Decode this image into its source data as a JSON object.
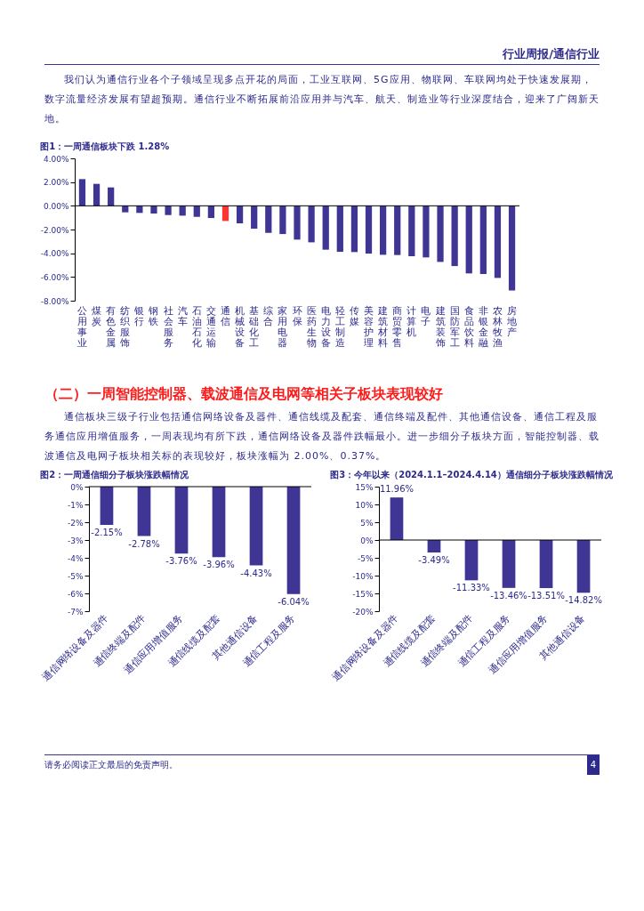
{
  "chart_data": [
    {
      "type": "other",
      "annotations": [
        "行业周报/通信行业",
        "我们认为通信行业各个子领域呈现多点开花的局面，工业互联网、5G应用、物联网、车联网均处于快速发展期，数字流量经济发展有望超预期。通信行业不断拓展前沿应用并与汽车、航天、制造业等行业深度结合，迎来了广阔新天地。"
      ]
    },
    {
      "type": "bar",
      "title": "图1：一周通信板块下跌 1.28%",
      "categories": [
        "公用事业",
        "煤炭",
        "有色金属",
        "纺织服饰",
        "银行",
        "钢铁",
        "社会服务",
        "汽车",
        "石油石化",
        "交通运输",
        "通信",
        "机械设备",
        "基础化工",
        "综合",
        "家用电器",
        "环保",
        "医药生物",
        "电力设备",
        "轻工制造",
        "传媒",
        "美容护理",
        "建筑材料",
        "商贸零售",
        "计算机",
        "电子",
        "建筑装饰",
        "国防军工",
        "食品饮料",
        "非银金融",
        "农林牧渔",
        "房地产"
      ],
      "values": [
        2.25,
        1.85,
        1.55,
        -0.55,
        -0.6,
        -0.65,
        -0.78,
        -0.83,
        -0.93,
        -1.03,
        -1.28,
        -1.48,
        -1.93,
        -2.28,
        -2.38,
        -2.85,
        -3.08,
        -3.7,
        -3.88,
        -3.9,
        -4.03,
        -4.13,
        -4.15,
        -4.25,
        -4.35,
        -4.73,
        -5.08,
        -5.7,
        -5.75,
        -6.08,
        -7.13
      ],
      "colors": [
        "#3f3594",
        "#3f3594",
        "#3f3594",
        "#3f3594",
        "#3f3594",
        "#3f3594",
        "#3f3594",
        "#3f3594",
        "#3f3594",
        "#3f3594",
        "#ff3333",
        "#3f3594",
        "#3f3594",
        "#3f3594",
        "#3f3594",
        "#3f3594",
        "#3f3594",
        "#3f3594",
        "#3f3594",
        "#3f3594",
        "#3f3594",
        "#3f3594",
        "#3f3594",
        "#3f3594",
        "#3f3594",
        "#3f3594",
        "#3f3594",
        "#3f3594",
        "#3f3594",
        "#3f3594",
        "#3f3594"
      ],
      "ylim": [
        -8,
        4
      ],
      "yticks": [
        {
          "value": 4,
          "label": "4.00%"
        },
        {
          "value": 2,
          "label": "2.00%"
        },
        {
          "value": 0,
          "label": "0.00%"
        },
        {
          "value": -2,
          "label": "-2.00%"
        },
        {
          "value": -4,
          "label": "-4.00%"
        },
        {
          "value": -6,
          "label": "-6.00%"
        },
        {
          "value": -8,
          "label": "-8.00%"
        }
      ]
    },
    {
      "type": "other",
      "title": "（二）一周智能控制器、载波通信及电网等相关子板块表现较好",
      "annotations": [
        "通信板块三级子行业包括通信网络设备及器件、通信线缆及配套、通信终端及配件、其他通信设备、通信工程及服务通信应用增值服务，一周表现均有所下跌，通信网络设备及器件跌幅最小。进一步细分子板块方面，智能控制器、载波通信及电网子板块相关标的表现较好，板块涨幅为 2.00%、0.37%。"
      ]
    },
    {
      "type": "bar",
      "title": "图2：一周通信细分子板块涨跌幅情况",
      "categories": [
        "通信网络设备及器件",
        "通信终端及配件",
        "通信应用增值服务",
        "通信线缆及配套",
        "其他通信设备",
        "通信工程及服务"
      ],
      "values": [
        -2.15,
        -2.78,
        -3.76,
        -3.96,
        -4.43,
        -6.04
      ],
      "value_labels": [
        "-2.15%",
        "-2.78%",
        "-3.76%",
        "-3.96%",
        "-4.43%",
        "-6.04%"
      ],
      "color": "#3f3594",
      "ylim": [
        -7,
        0
      ],
      "yticks": [
        {
          "value": 0,
          "label": "0%"
        },
        {
          "value": -1,
          "label": "-1%"
        },
        {
          "value": -2,
          "label": "-2%"
        },
        {
          "value": -3,
          "label": "-3%"
        },
        {
          "value": -4,
          "label": "-4%"
        },
        {
          "value": -5,
          "label": "-5%"
        },
        {
          "value": -6,
          "label": "-6%"
        },
        {
          "value": -7,
          "label": "-7%"
        }
      ]
    },
    {
      "type": "bar",
      "title": "图3：今年以来（2024.1.1–2024.4.14）通信细分子板块涨跌幅情况",
      "categories": [
        "通信网络设备及器件",
        "通信线缆及配套",
        "通信终端及配件",
        "通信工程及服务",
        "通信应用增值服务",
        "其他通信设备"
      ],
      "values": [
        11.96,
        -3.49,
        -11.33,
        -13.46,
        -13.51,
        -14.82
      ],
      "value_labels": [
        "11.96%",
        "-3.49%",
        "-11.33%",
        "-13.46%",
        "-13.51%",
        "-14.82%"
      ],
      "color": "#3f3594",
      "ylim": [
        -20,
        15
      ],
      "yticks": [
        {
          "value": 15,
          "label": "15%"
        },
        {
          "value": 10,
          "label": "10%"
        },
        {
          "value": 5,
          "label": "5%"
        },
        {
          "value": 0,
          "label": "0%"
        },
        {
          "value": -5,
          "label": "-5%"
        },
        {
          "value": -10,
          "label": "-10%"
        },
        {
          "value": -15,
          "label": "-15%"
        },
        {
          "value": -20,
          "label": "-20%"
        }
      ]
    },
    {
      "type": "other",
      "annotations": [
        "请务必阅读正文最后的免责声明。",
        "4"
      ]
    }
  ]
}
